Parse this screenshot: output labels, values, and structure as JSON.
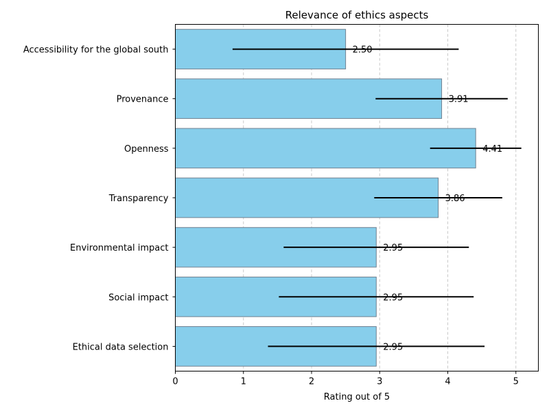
{
  "chart_data": {
    "type": "bar",
    "orientation": "horizontal",
    "title": "Relevance of ethics aspects",
    "xlabel": "Rating out of 5",
    "ylabel": "",
    "xlim": [
      0,
      5.33
    ],
    "xticks": [
      0,
      1,
      2,
      3,
      4,
      5
    ],
    "grid": "x-dashed",
    "categories": [
      "Accessibility for the global south",
      "Provenance",
      "Openness",
      "Transparency",
      "Environmental impact",
      "Social impact",
      "Ethical data selection"
    ],
    "values": [
      2.5,
      3.91,
      4.41,
      3.86,
      2.95,
      2.95,
      2.95
    ],
    "value_labels": [
      "2.50",
      "3.91",
      "4.41",
      "3.86",
      "2.95",
      "2.95",
      "2.95"
    ],
    "error": [
      1.66,
      0.97,
      0.67,
      0.94,
      1.36,
      1.43,
      1.59
    ],
    "bar_color": "#87CEEB",
    "bar_edge_color": "#708090",
    "error_color": "#000000",
    "grid_color": "#c8c8c8"
  }
}
